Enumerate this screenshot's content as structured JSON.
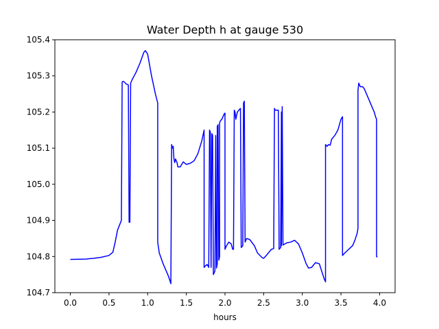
{
  "chart_data": {
    "type": "line",
    "title": "Water Depth h at gauge 530",
    "xlabel": "hours",
    "ylabel": "",
    "xlim": [
      -0.2,
      4.2
    ],
    "ylim": [
      104.7,
      105.4
    ],
    "xticks": [
      "0.0",
      "0.5",
      "1.0",
      "1.5",
      "2.0",
      "2.5",
      "3.0",
      "3.5",
      "4.0"
    ],
    "yticks": [
      "104.7",
      "104.8",
      "104.9",
      "105.0",
      "105.1",
      "105.2",
      "105.3",
      "105.4"
    ],
    "grid": false,
    "legend": "none",
    "series": [
      {
        "color": "#0000ff",
        "points": [
          [
            0.0,
            104.792
          ],
          [
            0.2,
            104.793
          ],
          [
            0.3,
            104.795
          ],
          [
            0.4,
            104.798
          ],
          [
            0.5,
            104.803
          ],
          [
            0.55,
            104.812
          ],
          [
            0.58,
            104.84
          ],
          [
            0.61,
            104.873
          ],
          [
            0.66,
            104.9
          ],
          [
            0.67,
            105.283
          ],
          [
            0.68,
            105.285
          ],
          [
            0.7,
            105.283
          ],
          [
            0.72,
            105.278
          ],
          [
            0.75,
            105.275
          ],
          [
            0.76,
            104.895
          ],
          [
            0.77,
            104.895
          ],
          [
            0.78,
            105.28
          ],
          [
            0.8,
            105.29
          ],
          [
            0.85,
            105.31
          ],
          [
            0.9,
            105.335
          ],
          [
            0.95,
            105.365
          ],
          [
            0.97,
            105.37
          ],
          [
            1.0,
            105.36
          ],
          [
            1.05,
            105.3
          ],
          [
            1.1,
            105.25
          ],
          [
            1.13,
            105.225
          ],
          [
            1.13,
            104.84
          ],
          [
            1.15,
            104.81
          ],
          [
            1.2,
            104.78
          ],
          [
            1.27,
            104.745
          ],
          [
            1.3,
            104.725
          ],
          [
            1.31,
            105.11
          ],
          [
            1.32,
            105.1
          ],
          [
            1.33,
            105.105
          ],
          [
            1.34,
            105.07
          ],
          [
            1.35,
            105.06
          ],
          [
            1.36,
            105.07
          ],
          [
            1.38,
            105.06
          ],
          [
            1.39,
            105.048
          ],
          [
            1.42,
            105.048
          ],
          [
            1.44,
            105.055
          ],
          [
            1.46,
            105.062
          ],
          [
            1.5,
            105.055
          ],
          [
            1.55,
            105.058
          ],
          [
            1.6,
            105.065
          ],
          [
            1.65,
            105.085
          ],
          [
            1.7,
            105.12
          ],
          [
            1.73,
            105.15
          ],
          [
            1.73,
            104.77
          ],
          [
            1.75,
            104.775
          ],
          [
            1.77,
            104.778
          ],
          [
            1.79,
            104.77
          ],
          [
            1.8,
            105.15
          ],
          [
            1.81,
            105.145
          ],
          [
            1.82,
            104.77
          ],
          [
            1.83,
            105.14
          ],
          [
            1.84,
            105.135
          ],
          [
            1.85,
            104.75
          ],
          [
            1.86,
            104.755
          ],
          [
            1.87,
            104.76
          ],
          [
            1.88,
            105.135
          ],
          [
            1.89,
            104.768
          ],
          [
            1.9,
            104.78
          ],
          [
            1.9,
            105.16
          ],
          [
            1.91,
            105.165
          ],
          [
            1.92,
            104.79
          ],
          [
            1.93,
            104.8
          ],
          [
            1.93,
            105.17
          ],
          [
            1.94,
            105.175
          ],
          [
            1.95,
            105.178
          ],
          [
            1.96,
            105.18
          ],
          [
            1.97,
            105.185
          ],
          [
            1.98,
            105.19
          ],
          [
            1.99,
            105.195
          ],
          [
            2.0,
            105.197
          ],
          [
            2.0,
            104.82
          ],
          [
            2.02,
            104.83
          ],
          [
            2.05,
            104.84
          ],
          [
            2.08,
            104.835
          ],
          [
            2.1,
            104.82
          ],
          [
            2.11,
            104.82
          ],
          [
            2.12,
            105.205
          ],
          [
            2.13,
            105.2
          ],
          [
            2.14,
            105.18
          ],
          [
            2.16,
            105.2
          ],
          [
            2.18,
            105.205
          ],
          [
            2.2,
            105.21
          ],
          [
            2.21,
            104.825
          ],
          [
            2.23,
            104.83
          ],
          [
            2.24,
            105.225
          ],
          [
            2.25,
            105.23
          ],
          [
            2.26,
            104.84
          ],
          [
            2.28,
            104.85
          ],
          [
            2.32,
            104.847
          ],
          [
            2.38,
            104.83
          ],
          [
            2.42,
            104.81
          ],
          [
            2.48,
            104.797
          ],
          [
            2.5,
            104.795
          ],
          [
            2.53,
            104.802
          ],
          [
            2.6,
            104.82
          ],
          [
            2.63,
            104.822
          ],
          [
            2.64,
            105.21
          ],
          [
            2.65,
            105.205
          ],
          [
            2.67,
            105.205
          ],
          [
            2.69,
            105.205
          ],
          [
            2.7,
            104.82
          ],
          [
            2.72,
            104.825
          ],
          [
            2.73,
            105.2
          ],
          [
            2.73,
            104.83
          ],
          [
            2.74,
            105.215
          ],
          [
            2.75,
            104.832
          ],
          [
            2.8,
            104.838
          ],
          [
            2.85,
            104.84
          ],
          [
            2.9,
            104.845
          ],
          [
            2.95,
            104.835
          ],
          [
            3.0,
            104.81
          ],
          [
            3.05,
            104.78
          ],
          [
            3.08,
            104.768
          ],
          [
            3.12,
            104.77
          ],
          [
            3.17,
            104.783
          ],
          [
            3.22,
            104.78
          ],
          [
            3.25,
            104.76
          ],
          [
            3.28,
            104.74
          ],
          [
            3.3,
            104.73
          ],
          [
            3.3,
            105.11
          ],
          [
            3.32,
            105.105
          ],
          [
            3.34,
            105.11
          ],
          [
            3.36,
            105.108
          ],
          [
            3.38,
            105.125
          ],
          [
            3.42,
            105.135
          ],
          [
            3.46,
            105.15
          ],
          [
            3.5,
            105.18
          ],
          [
            3.52,
            105.187
          ],
          [
            3.52,
            104.803
          ],
          [
            3.55,
            104.81
          ],
          [
            3.6,
            104.82
          ],
          [
            3.65,
            104.83
          ],
          [
            3.68,
            104.845
          ],
          [
            3.71,
            104.865
          ],
          [
            3.72,
            104.878
          ],
          [
            3.72,
            105.26
          ],
          [
            3.73,
            105.28
          ],
          [
            3.75,
            105.27
          ],
          [
            3.78,
            105.27
          ],
          [
            3.8,
            105.265
          ],
          [
            3.83,
            105.25
          ],
          [
            3.86,
            105.235
          ],
          [
            3.9,
            105.215
          ],
          [
            3.93,
            105.2
          ],
          [
            3.95,
            105.185
          ],
          [
            3.96,
            105.18
          ],
          [
            3.96,
            104.8
          ],
          [
            3.97,
            104.798
          ]
        ]
      }
    ]
  }
}
